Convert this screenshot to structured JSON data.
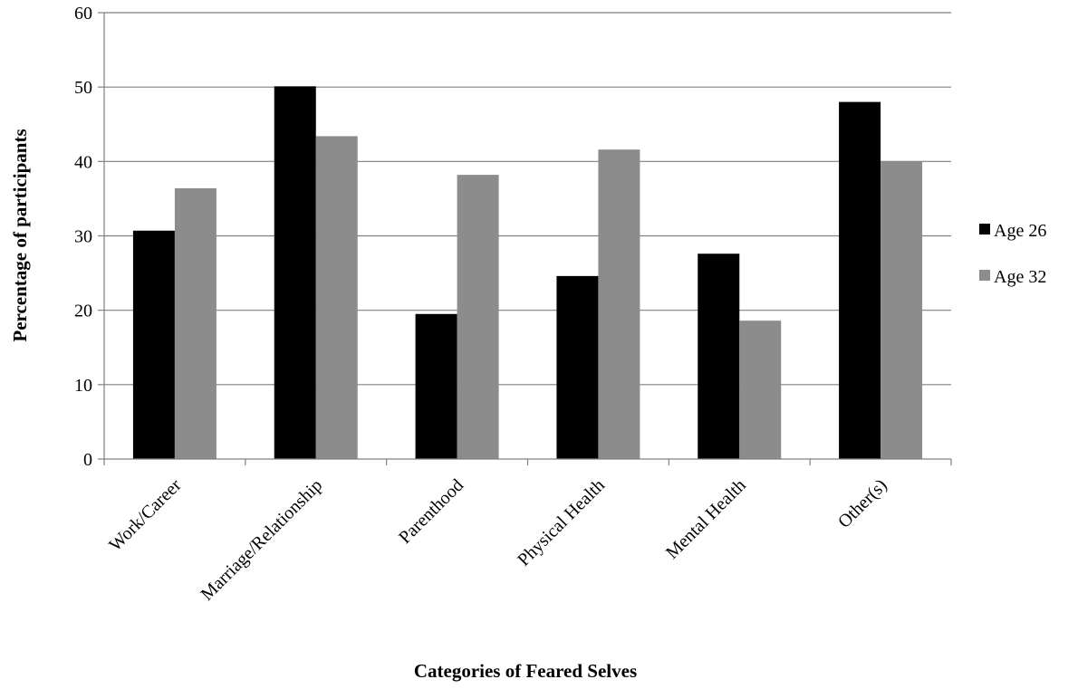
{
  "chart_data": {
    "type": "bar",
    "title": "",
    "xlabel": "Categories of Feared Selves",
    "ylabel": "Percentage of participants",
    "ylim": [
      0,
      60
    ],
    "yticks": [
      0,
      10,
      20,
      30,
      40,
      50,
      60
    ],
    "grid": true,
    "legend_position": "right",
    "categories": [
      "Work/Career",
      "Marriage/Relationship",
      "Parenthood",
      "Physical Health",
      "Mental Health",
      "Other(s)"
    ],
    "series": [
      {
        "name": "Age 26",
        "color": "#000000",
        "values": [
          30.7,
          50.1,
          19.5,
          24.6,
          27.6,
          48.0
        ]
      },
      {
        "name": "Age 32",
        "color": "#8c8c8c",
        "values": [
          36.4,
          43.4,
          38.2,
          41.6,
          18.6,
          40.0
        ]
      }
    ]
  }
}
